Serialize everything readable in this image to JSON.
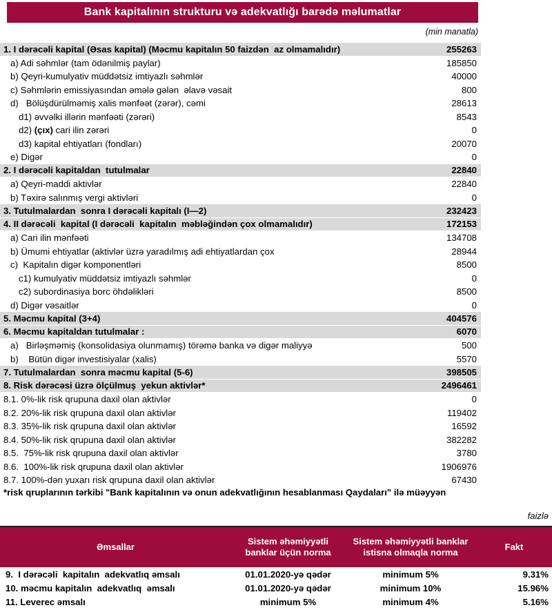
{
  "colors": {
    "maroon": "#9E0C3D",
    "row_gray": "#D9D9D9"
  },
  "title": "Bank kapitalının strukturu və adekvatlığı barədə məlumatlar",
  "unit_note": "(min manatla)",
  "capital_table": {
    "rows": [
      {
        "label": "1. I dərəcəli kapital (Əsas kapital) (Məcmu kapitalın 50 faizdən  az olmamalıdır)",
        "value": "255263",
        "section": true,
        "indent": 0
      },
      {
        "label": "a) Adi səhmlər (tam ödənilmiş paylar)",
        "value": "185850",
        "indent": 1
      },
      {
        "label": "b) Qeyri-kumulyativ müddətsiz imtiyazlı səhmlər",
        "value": "40000",
        "indent": 1
      },
      {
        "label": "c) Səhmlərin emissiyasından əmələ gələn  əlavə vəsait",
        "value": "800",
        "indent": 1
      },
      {
        "label": "d)   Bölüşdürülməmiş xalis mənfəət (zərər), cəmi",
        "value": "28613",
        "indent": 1
      },
      {
        "label": "d1) əvvəlki illərin mənfəəti (zərəri)",
        "value": "8543",
        "indent": 2
      },
      {
        "parts": [
          "d2) ",
          "(çıx)",
          " cari ilin zərəri"
        ],
        "label": "d2) (çıx) cari ilin zərəri",
        "value": "0",
        "indent": 2
      },
      {
        "label": "d3) kapital ehtiyatları (fondları)",
        "value": "20070",
        "indent": 2
      },
      {
        "label": "e) Digər",
        "value": "0",
        "indent": 1
      },
      {
        "label": "2. I dərəcəli kapitaldan  tutulmalar",
        "value": "22840",
        "section": true,
        "indent": 0
      },
      {
        "label": "a) Qeyri-maddi aktivlər",
        "value": "22840",
        "indent": 1
      },
      {
        "label": "b) Təxirə salınmış vergi aktivləri",
        "value": "0",
        "indent": 1
      },
      {
        "label": "3. Tutulmalardan  sonra I dərəcəli kapitalı (I—2)",
        "value": "232423",
        "section": true,
        "indent": 0
      },
      {
        "label": "4. II dərəcəli  kapital (I dərəcəli  kapitalın  məbləğindən çox olmamalıdır)",
        "value": "172153",
        "section": true,
        "indent": 0
      },
      {
        "label": "a) Cari ilin mənfəəti",
        "value": "134708",
        "indent": 1
      },
      {
        "label": "b) Ümumi ehtiyatlar (aktivlər üzrə yaradılmış adi ehtiyatlardan çox",
        "value": "28944",
        "indent": 1
      },
      {
        "label": "c)  Kapitalın digər komponentləri",
        "value": "8500",
        "indent": 1
      },
      {
        "label": "c1) kumulyativ müddətsiz imtiyazlı səhmlər",
        "value": "0",
        "indent": 2
      },
      {
        "label": "c2) subordinasiya borc öhdəlikləri",
        "value": "8500",
        "indent": 2
      },
      {
        "label": "d) Digər vəsaitlər",
        "value": "0",
        "indent": 1
      },
      {
        "label": "5. Məcmu kapital (3+4)",
        "value": "404576",
        "section": true,
        "indent": 0
      },
      {
        "label": "6. Məcmu kapitaldan tutulmalar :",
        "value": "6070",
        "section": true,
        "indent": 0
      },
      {
        "label": "a)   Birləşməmiş (konsolidasiya olunmamış) törəmə banka və digər maliyyə",
        "value": "500",
        "indent": 1
      },
      {
        "label": "b)    Bütün digər investisiyalar (xalis)",
        "value": "5570",
        "indent": 1
      },
      {
        "label": "7. Tutulmalardan  sonra məcmu kapital (5-6)",
        "value": "398505",
        "section": true,
        "indent": 0
      },
      {
        "label": "8. Risk dərəcəsi üzrə ölçülmuş  yekun aktivlər*",
        "value": "2496461",
        "section": true,
        "indent": 0
      },
      {
        "label": "8.1. 0%-lik risk qrupuna daxil olan aktivlər",
        "value": "0",
        "indent": 0
      },
      {
        "label": "8.2. 20%-lik risk qrupuna daxil olan aktivlər",
        "value": "119402",
        "indent": 0
      },
      {
        "label": "8.3. 35%-lik risk qrupuna daxil olan aktivlər",
        "value": "16592",
        "indent": 0
      },
      {
        "label": "8.4. 50%-lik risk qrupuna daxil olan aktivlər",
        "value": "382282",
        "indent": 0
      },
      {
        "label": "8.5.  75%-lik risk qrupuna daxil olan aktivlər",
        "value": "3780",
        "indent": 0
      },
      {
        "label": "8.6.  100%-lik risk qrupuna daxil olan aktivlər",
        "value": "1906976",
        "indent": 0
      },
      {
        "label": "8.7. 100%-dən yuxarı risk qrupuna daxil olan aktivlər",
        "value": "67430",
        "indent": 0
      }
    ]
  },
  "footnote": "*risk qruplarının tərkibi \"Bank kapitalının və onun adekvatlığının hesablanması Qaydaları\" ilə müəyyən",
  "percent_note": "faizlə",
  "ratios_table": {
    "headers": [
      "Əmsallar",
      "Sistem əhəmiyyətli banklar üçün norma",
      "Sistem əhəmiyyətli banklar istisna olmaqla norma",
      "Fakt"
    ],
    "rows": [
      {
        "label": "9.  I dərəcəli  kapitalın  adekvatlıq əmsalı",
        "norma_sistem": "01.01.2020-yə qədər",
        "norma_istisna": "minimum 5%",
        "fakt": "9.31%"
      },
      {
        "label": "10. məcmu kapitalın  adekvatlıq  əmsalı",
        "norma_sistem": "01.01.2020-yə qədər",
        "norma_istisna": "minimum 10%",
        "fakt": "15.96%"
      },
      {
        "label": "11. Leverec əmsalı",
        "norma_sistem": "minimum 5%",
        "norma_istisna": "minimum 4%",
        "fakt": "5.16%"
      }
    ]
  }
}
